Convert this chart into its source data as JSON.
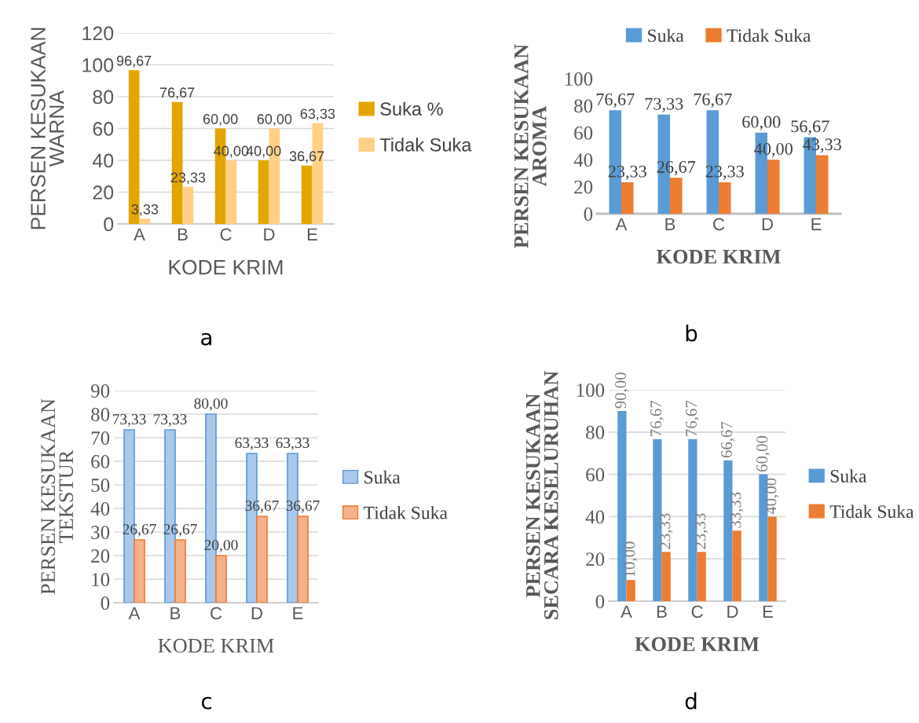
{
  "chart_data": [
    {
      "type": "bar",
      "ylabel": "PERSEN KESUKAAN\nWARNA",
      "xlabel": "KODE KRIM",
      "categories": [
        "A",
        "B",
        "C",
        "D",
        "E"
      ],
      "ylim": [
        0,
        120
      ],
      "yticks": [
        0,
        20,
        40,
        60,
        80,
        100,
        120
      ],
      "grid": "y",
      "legend": "right",
      "annotations": [
        "a"
      ],
      "series": [
        {
          "name": "Suka %",
          "color": "#e3a600",
          "values": [
            96.67,
            76.67,
            60.0,
            40.0,
            36.67
          ],
          "value_labels": [
            "96,67",
            "76,67",
            "60,00",
            "40,00",
            "36,67"
          ]
        },
        {
          "name": "Tidak Suka",
          "color": "#ffd086",
          "values": [
            3.33,
            23.33,
            40.0,
            60.0,
            63.33
          ],
          "value_labels": [
            "3,33",
            "23,33",
            "40,00",
            "60,00",
            "63,33"
          ]
        }
      ]
    },
    {
      "type": "bar",
      "ylabel": "PERSEN KESUKAAN\nAROMA",
      "xlabel": "KODE KRIM",
      "categories": [
        "A",
        "B",
        "C",
        "D",
        "E"
      ],
      "ylim": [
        0,
        100
      ],
      "yticks": [
        0,
        20,
        40,
        60,
        80,
        100
      ],
      "grid": false,
      "legend": "top",
      "annotations": [
        "b"
      ],
      "series": [
        {
          "name": "Suka",
          "color": "#5b9bd5",
          "values": [
            76.67,
            73.33,
            76.67,
            60.0,
            56.67
          ],
          "value_labels": [
            "76,67",
            "73,33",
            "76,67",
            "60,00",
            "56,67"
          ]
        },
        {
          "name": "Tidak Suka",
          "color": "#ed7d31",
          "values": [
            23.33,
            26.67,
            23.33,
            40.0,
            43.33
          ],
          "value_labels": [
            "23,33",
            "26,67",
            "23,33",
            "40,00",
            "43,33"
          ]
        }
      ]
    },
    {
      "type": "bar",
      "ylabel": "PERSEN KESUKAAN\nTEKSTUR",
      "xlabel": "KODE KRIM",
      "categories": [
        "A",
        "B",
        "C",
        "D",
        "E"
      ],
      "ylim": [
        0,
        90
      ],
      "yticks": [
        0,
        10,
        20,
        30,
        40,
        50,
        60,
        70,
        80,
        90
      ],
      "grid": "y",
      "legend": "right",
      "annotations": [
        "c"
      ],
      "series": [
        {
          "name": "Suka",
          "color": "#a9c8ea",
          "values": [
            73.33,
            73.33,
            80.0,
            63.33,
            63.33
          ],
          "value_labels": [
            "73,33",
            "73,33",
            "80,00",
            "63,33",
            "63,33"
          ]
        },
        {
          "name": "Tidak Suka",
          "color": "#f5b08c",
          "values": [
            26.67,
            26.67,
            20.0,
            36.67,
            36.67
          ],
          "value_labels": [
            "26,67",
            "26,67",
            "20,00",
            "36,67",
            "36,67"
          ]
        }
      ]
    },
    {
      "type": "bar",
      "ylabel": "PERSEN KESUKAAN\nSECARA KESELURUHAN",
      "xlabel": "KODE KRIM",
      "categories": [
        "A",
        "B",
        "C",
        "D",
        "E"
      ],
      "ylim": [
        0,
        100
      ],
      "yticks": [
        0,
        20,
        40,
        60,
        80,
        100
      ],
      "grid": "y",
      "legend": "right",
      "annotations": [
        "d"
      ],
      "series": [
        {
          "name": "Suka",
          "color": "#5b9bd5",
          "values": [
            90.0,
            76.67,
            76.67,
            66.67,
            60.0
          ],
          "value_labels": [
            "90,00",
            "76,67",
            "76,67",
            "66,67",
            "60,00"
          ]
        },
        {
          "name": "Tidak Suka",
          "color": "#ed7d31",
          "values": [
            10.0,
            23.33,
            23.33,
            33.33,
            40.0
          ],
          "value_labels": [
            "10,00",
            "23,33",
            "23,33",
            "33,33",
            "40,00"
          ]
        }
      ]
    }
  ]
}
